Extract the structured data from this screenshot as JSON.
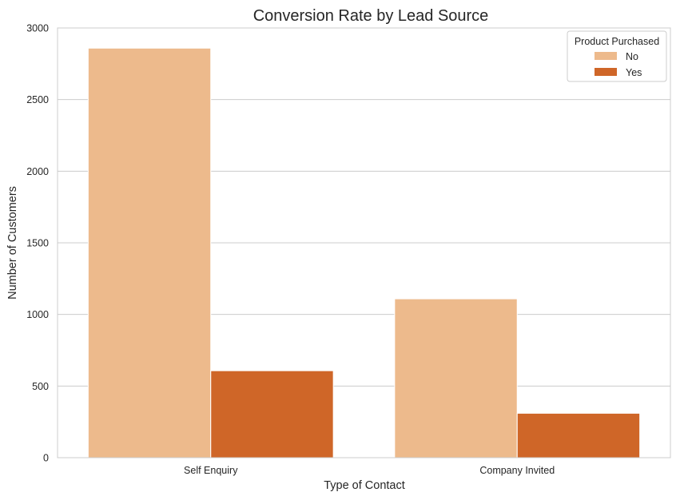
{
  "chart_data": {
    "type": "bar",
    "title": "Conversion Rate by Lead Source",
    "xlabel": "Type of Contact",
    "ylabel": "Number of Customers",
    "categories": [
      "Self Enquiry",
      "Company Invited"
    ],
    "series": [
      {
        "name": "No",
        "values": [
          2859,
          1109
        ],
        "color": "#edba8c"
      },
      {
        "name": "Yes",
        "values": [
          607,
          310
        ],
        "color": "#cf6628"
      }
    ],
    "ylim": [
      0,
      3000
    ],
    "yticks": [
      0,
      500,
      1000,
      1500,
      2000,
      2500,
      3000
    ],
    "grid": "horizontal",
    "legend": {
      "title": "Product Purchased",
      "placement": "top-right"
    }
  }
}
